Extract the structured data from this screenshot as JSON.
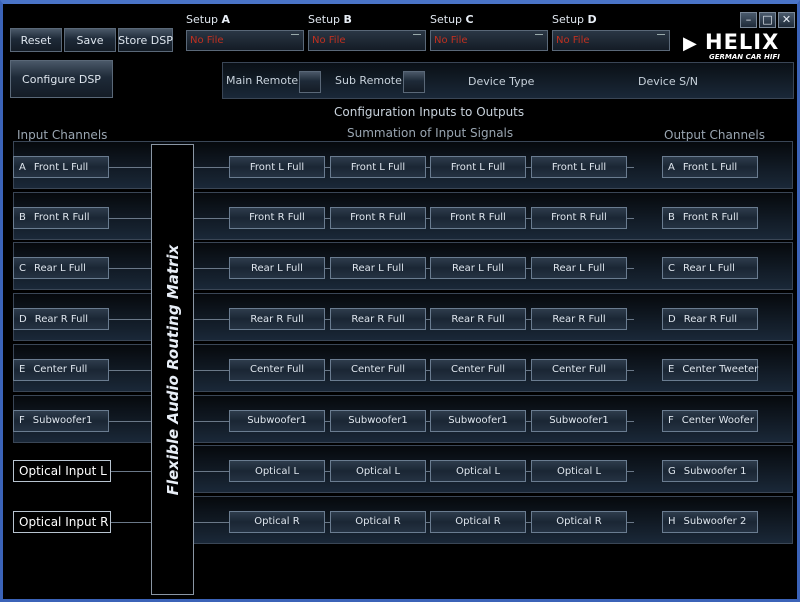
{
  "toolbar": {
    "reset": "Reset",
    "save": "Save",
    "store_dsp": "Store DSP",
    "configure_dsp": "Configure DSP"
  },
  "setups": [
    {
      "prefix": "Setup",
      "letter": "A",
      "file": "No File"
    },
    {
      "prefix": "Setup",
      "letter": "B",
      "file": "No File"
    },
    {
      "prefix": "Setup",
      "letter": "C",
      "file": "No File"
    },
    {
      "prefix": "Setup",
      "letter": "D",
      "file": "No File"
    }
  ],
  "logo": {
    "brand": "HELIX",
    "tagline": "GERMAN CAR HIFI"
  },
  "device": {
    "main_remote": "Main Remote",
    "sub_remote": "Sub Remote",
    "device_type": "Device Type",
    "device_sn": "Device S/N"
  },
  "headings": {
    "config": "Configuration Inputs to Outputs",
    "inputs": "Input Channels",
    "summation": "Summation of Input Signals",
    "outputs": "Output Channels",
    "matrix": "Flexible Audio Routing Matrix"
  },
  "colors": {
    "no_file": "#c03020",
    "window_border": "#3b63b8"
  },
  "rows": [
    {
      "in_key": "A",
      "in": "Front L Full",
      "sum": [
        "Front L Full",
        "Front L Full",
        "Front L Full",
        "Front L Full"
      ],
      "out_key": "A",
      "out": "Front L Full"
    },
    {
      "in_key": "B",
      "in": "Front R Full",
      "sum": [
        "Front R Full",
        "Front R Full",
        "Front R Full",
        "Front R Full"
      ],
      "out_key": "B",
      "out": "Front R Full"
    },
    {
      "in_key": "C",
      "in": "Rear L Full",
      "sum": [
        "Rear L Full",
        "Rear L Full",
        "Rear L Full",
        "Rear L Full"
      ],
      "out_key": "C",
      "out": "Rear L Full"
    },
    {
      "in_key": "D",
      "in": "Rear R Full",
      "sum": [
        "Rear R Full",
        "Rear R Full",
        "Rear R Full",
        "Rear R Full"
      ],
      "out_key": "D",
      "out": "Rear R Full"
    },
    {
      "in_key": "E",
      "in": "Center Full",
      "sum": [
        "Center Full",
        "Center Full",
        "Center Full",
        "Center Full"
      ],
      "out_key": "E",
      "out": "Center Tweeter"
    },
    {
      "in_key": "F",
      "in": "Subwoofer1",
      "sum": [
        "Subwoofer1",
        "Subwoofer1",
        "Subwoofer1",
        "Subwoofer1"
      ],
      "out_key": "F",
      "out": "Center Woofer"
    },
    {
      "in": "Optical Input L",
      "sum": [
        "Optical L",
        "Optical L",
        "Optical L",
        "Optical L"
      ],
      "out_key": "G",
      "out": "Subwoofer 1"
    },
    {
      "in": "Optical Input R",
      "sum": [
        "Optical R",
        "Optical R",
        "Optical R",
        "Optical R"
      ],
      "out_key": "H",
      "out": "Subwoofer 2"
    }
  ]
}
